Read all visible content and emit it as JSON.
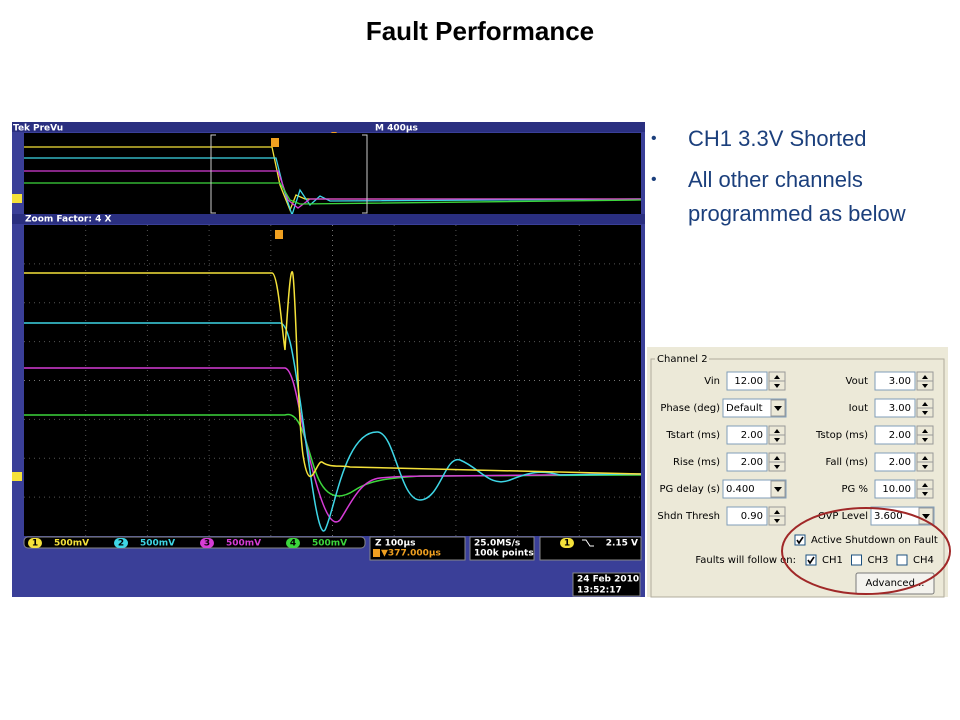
{
  "title": "Fault Performance",
  "bullets": [
    "CH1 3.3V Shorted",
    "All other channels programmed as below"
  ],
  "scope": {
    "brand": "Tek",
    "mode": "PreVu",
    "timebase": "M 400µs",
    "zoom": "Zoom Factor: 4 X",
    "channels": [
      {
        "number": "1",
        "scale": "500mV",
        "color": "#f5e23a"
      },
      {
        "number": "2",
        "scale": "500mV",
        "color": "#3ed6e6"
      },
      {
        "number": "3",
        "scale": "500mV",
        "color": "#d63cd6"
      },
      {
        "number": "4",
        "scale": "500mV",
        "color": "#3cd63c"
      }
    ],
    "zoom_time": "Z 100µs",
    "trigger_position": "▼377.000µs",
    "sample_rate": "25.0MS/s",
    "record_length": "100k points",
    "trigger_channel": "1",
    "trigger_level": "2.15 V",
    "date": "24 Feb 2010",
    "time": "13:52:17"
  },
  "panel": {
    "group": "Channel 2",
    "left_fields": [
      {
        "label": "Vin",
        "value": "12.00",
        "control": "spin"
      },
      {
        "label": "Phase (deg)",
        "value": "Default",
        "control": "dropdown"
      },
      {
        "label": "Tstart (ms)",
        "value": "2.00",
        "control": "spin"
      },
      {
        "label": "Rise (ms)",
        "value": "2.00",
        "control": "spin"
      },
      {
        "label": "PG delay (s)",
        "value": "0.400",
        "control": "dropdown"
      },
      {
        "label": "Shdn Thresh",
        "value": "0.90",
        "control": "spin"
      }
    ],
    "right_fields": [
      {
        "label": "Vout",
        "value": "3.00",
        "control": "spin"
      },
      {
        "label": "Iout",
        "value": "3.00",
        "control": "spin"
      },
      {
        "label": "Tstop (ms)",
        "value": "2.00",
        "control": "spin"
      },
      {
        "label": "Fall (ms)",
        "value": "2.00",
        "control": "spin"
      },
      {
        "label": "PG %",
        "value": "10.00",
        "control": "spin"
      },
      {
        "label": "OVP Level",
        "value": "3.600",
        "control": "dropdown"
      }
    ],
    "active_shutdown": {
      "label": "Active Shutdown on Fault",
      "checked": true
    },
    "faults_label": "Faults will follow on:",
    "fault_channels": [
      {
        "label": "CH1",
        "checked": true
      },
      {
        "label": "CH3",
        "checked": false
      },
      {
        "label": "CH4",
        "checked": false
      }
    ],
    "button": "Advanced..."
  }
}
